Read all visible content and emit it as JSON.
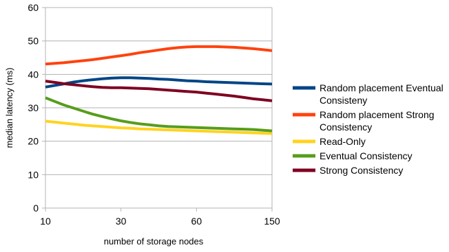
{
  "chart_data": {
    "type": "line",
    "title": "",
    "xlabel": "number of storage nodes",
    "ylabel": "median latency (ms)",
    "categories": [
      "10",
      "30",
      "60",
      "150"
    ],
    "x": [
      0,
      0.125,
      0.25,
      0.375,
      0.5,
      0.625,
      0.75,
      0.875,
      1,
      1.125,
      1.25,
      1.375,
      1.5,
      1.625,
      1.75,
      1.875,
      2,
      2.125,
      2.25,
      2.375,
      2.5,
      2.625,
      2.75,
      2.875,
      3
    ],
    "ylim": [
      0,
      60
    ],
    "yticks": [
      "0",
      "10",
      "20",
      "30",
      "40",
      "50",
      "60"
    ],
    "grid": true,
    "legend_position": "right",
    "series": [
      {
        "name": "Random placement Eventual Consisteny",
        "name_lines": [
          "Random placement Eventual",
          "Consisteny"
        ],
        "color": "#004586",
        "values": [
          36.2,
          36.7,
          37.2,
          37.7,
          38.1,
          38.4,
          38.7,
          38.9,
          39.0,
          39.0,
          38.9,
          38.8,
          38.6,
          38.5,
          38.3,
          38.1,
          38.0,
          37.8,
          37.7,
          37.6,
          37.5,
          37.4,
          37.3,
          37.2,
          37.1
        ]
      },
      {
        "name": "Random placement Strong Consistency",
        "name_lines": [
          "Random placement Strong",
          "Consistency"
        ],
        "color": "#ff420e",
        "values": [
          43.1,
          43.3,
          43.5,
          43.8,
          44.1,
          44.4,
          44.8,
          45.2,
          45.6,
          46.0,
          46.5,
          46.9,
          47.3,
          47.7,
          48.0,
          48.2,
          48.3,
          48.3,
          48.3,
          48.2,
          48.1,
          47.9,
          47.7,
          47.4,
          47.1
        ]
      },
      {
        "name": "Read-Only",
        "name_lines": [
          "Read-Only"
        ],
        "color": "#ffd320",
        "values": [
          26.0,
          25.7,
          25.4,
          25.1,
          24.8,
          24.6,
          24.4,
          24.2,
          24.0,
          23.9,
          23.7,
          23.6,
          23.5,
          23.4,
          23.3,
          23.2,
          23.1,
          23.0,
          22.9,
          22.8,
          22.7,
          22.6,
          22.5,
          22.4,
          22.3
        ]
      },
      {
        "name": "Eventual Consistency",
        "name_lines": [
          "Eventual Consistency"
        ],
        "color": "#579d1c",
        "values": [
          33.0,
          31.9,
          30.8,
          29.9,
          29.0,
          28.1,
          27.4,
          26.7,
          26.1,
          25.6,
          25.2,
          24.9,
          24.6,
          24.4,
          24.3,
          24.2,
          24.1,
          24.0,
          23.9,
          23.8,
          23.7,
          23.6,
          23.5,
          23.3,
          23.1
        ]
      },
      {
        "name": "Strong Consistency",
        "name_lines": [
          "Strong Consistency"
        ],
        "color": "#7e0021",
        "values": [
          38.0,
          37.6,
          37.2,
          36.9,
          36.6,
          36.3,
          36.1,
          36.0,
          36.0,
          35.9,
          35.8,
          35.7,
          35.5,
          35.3,
          35.1,
          34.9,
          34.7,
          34.4,
          34.1,
          33.8,
          33.5,
          33.1,
          32.7,
          32.4,
          32.1
        ]
      }
    ]
  }
}
